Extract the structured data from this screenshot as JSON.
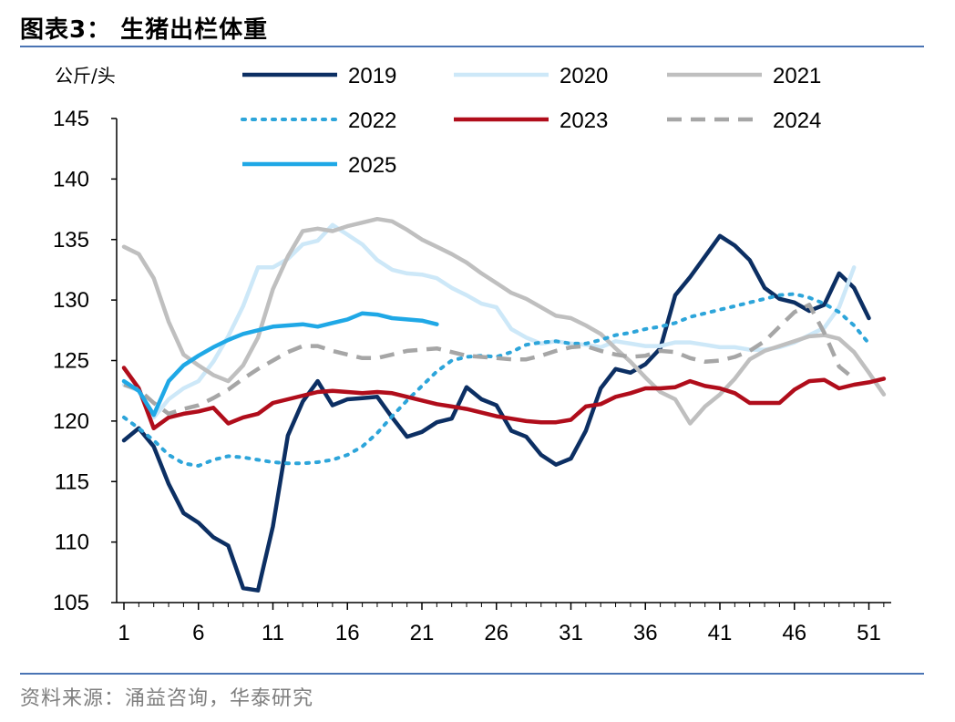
{
  "title": "图表3：  生猪出栏体重",
  "source": "资料来源：涌益咨询，华泰研究",
  "chart_data": {
    "type": "line",
    "unit_label": "公斤/头",
    "ylim": [
      105,
      145
    ],
    "yticks": [
      105,
      110,
      115,
      120,
      125,
      130,
      135,
      140,
      145
    ],
    "xlim": [
      1,
      52
    ],
    "xticks": [
      1,
      6,
      11,
      16,
      21,
      26,
      31,
      36,
      41,
      46,
      51
    ],
    "grid": false,
    "legend_position": "top",
    "series": [
      {
        "name": "2019",
        "color": "#0c2f63",
        "dash": "solid",
        "width": 4.5,
        "values": [
          118.4,
          119.4,
          117.9,
          114.8,
          112.4,
          111.6,
          110.4,
          109.7,
          106.2,
          106.0,
          111.3,
          118.8,
          121.6,
          123.3,
          121.3,
          121.8,
          121.9,
          122.0,
          120.3,
          118.7,
          119.1,
          119.9,
          120.2,
          122.8,
          121.8,
          121.3,
          119.2,
          118.7,
          117.2,
          116.4,
          116.9,
          119.2,
          122.7,
          124.3,
          124.0,
          124.7,
          126.0,
          130.4,
          131.9,
          133.6,
          135.3,
          134.5,
          133.3,
          131.0,
          130.1,
          129.8,
          129.1,
          129.6,
          132.2,
          131.0,
          128.5
        ]
      },
      {
        "name": "2020",
        "color": "#cde8f8",
        "dash": "solid",
        "width": 4.5,
        "values": [
          123.0,
          122.5,
          120.3,
          121.8,
          122.7,
          123.3,
          124.9,
          127.0,
          129.5,
          132.7,
          132.7,
          133.4,
          134.6,
          134.9,
          136.2,
          135.4,
          134.6,
          133.3,
          132.5,
          132.2,
          132.1,
          131.8,
          131.0,
          130.4,
          129.7,
          129.4,
          127.6,
          126.9,
          126.4,
          126.6,
          126.4,
          126.3,
          126.1,
          126.6,
          126.4,
          126.2,
          126.2,
          126.5,
          126.5,
          126.3,
          126.1,
          126.1,
          125.9,
          125.9,
          126.1,
          126.5,
          127.1,
          127.7,
          129.4,
          132.7
        ]
      },
      {
        "name": "2021",
        "color": "#bfbfbf",
        "dash": "solid",
        "width": 4.5,
        "values": [
          134.4,
          133.8,
          131.8,
          128.2,
          125.5,
          124.6,
          123.8,
          123.3,
          124.6,
          126.9,
          130.9,
          133.6,
          135.7,
          135.9,
          135.7,
          136.1,
          136.4,
          136.7,
          136.5,
          135.8,
          135.0,
          134.4,
          133.8,
          133.1,
          132.2,
          131.4,
          130.6,
          130.1,
          129.4,
          128.7,
          128.5,
          127.9,
          127.2,
          126.0,
          124.9,
          123.6,
          122.4,
          121.8,
          119.8,
          121.2,
          122.2,
          123.5,
          125.1,
          125.8,
          126.2,
          126.6,
          127.0,
          127.1,
          126.8,
          125.7,
          124.0,
          122.2
        ]
      },
      {
        "name": "2022",
        "color": "#2da5da",
        "dash": "dotted",
        "width": 4,
        "values": [
          120.3,
          119.4,
          118.4,
          117.2,
          116.5,
          116.3,
          116.8,
          117.1,
          117.0,
          116.8,
          116.6,
          116.5,
          116.5,
          116.6,
          116.8,
          117.2,
          117.9,
          119.0,
          120.4,
          121.7,
          122.9,
          124.1,
          125.0,
          125.3,
          125.4,
          125.3,
          125.7,
          126.3,
          126.5,
          126.6,
          126.4,
          126.4,
          126.7,
          127.1,
          127.3,
          127.6,
          127.8,
          128.1,
          128.6,
          128.9,
          129.2,
          129.5,
          129.8,
          130.1,
          130.4,
          130.5,
          130.2,
          129.7,
          129.0,
          127.9,
          126.4
        ]
      },
      {
        "name": "2023",
        "color": "#b00d1b",
        "dash": "solid",
        "width": 4.5,
        "values": [
          124.4,
          122.7,
          119.4,
          120.3,
          120.6,
          120.8,
          121.1,
          119.8,
          120.3,
          120.6,
          121.5,
          121.8,
          122.1,
          122.4,
          122.5,
          122.4,
          122.3,
          122.4,
          122.3,
          122.0,
          121.7,
          121.4,
          121.2,
          121.0,
          120.7,
          120.4,
          120.2,
          120.0,
          119.9,
          119.9,
          120.1,
          121.2,
          121.4,
          122.0,
          122.3,
          122.7,
          122.7,
          122.8,
          123.3,
          122.9,
          122.7,
          122.3,
          121.5,
          121.5,
          121.5,
          122.6,
          123.3,
          123.4,
          122.7,
          123.0,
          123.2,
          123.5
        ]
      },
      {
        "name": "2024",
        "color": "#a6a6a6",
        "dash": "dashed",
        "width": 4.5,
        "values": [
          123.0,
          122.6,
          121.5,
          120.6,
          121.0,
          121.3,
          121.9,
          122.6,
          123.5,
          124.3,
          125.0,
          125.7,
          126.2,
          126.2,
          125.8,
          125.5,
          125.2,
          125.2,
          125.5,
          125.8,
          125.9,
          126.0,
          125.7,
          125.4,
          125.3,
          125.2,
          125.1,
          125.1,
          125.4,
          125.8,
          126.1,
          126.2,
          125.8,
          125.5,
          125.3,
          125.4,
          125.8,
          125.7,
          125.2,
          124.9,
          125.0,
          125.3,
          125.8,
          126.6,
          127.8,
          129.0,
          129.6,
          127.3,
          124.5,
          123.5
        ]
      },
      {
        "name": "2025",
        "color": "#1fa8e6",
        "dash": "solid",
        "width": 4.5,
        "values": [
          123.3,
          122.5,
          120.5,
          123.3,
          124.6,
          125.4,
          126.1,
          126.7,
          127.2,
          127.5,
          127.8,
          127.9,
          128.0,
          127.8,
          128.1,
          128.4,
          128.9,
          128.8,
          128.5,
          128.4,
          128.3,
          128.0
        ]
      }
    ]
  }
}
